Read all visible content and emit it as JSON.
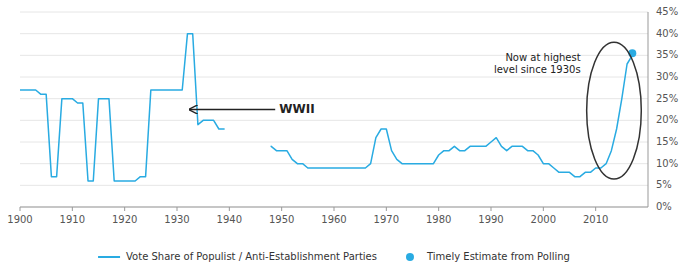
{
  "chart_data": {
    "type": "line",
    "x": [
      1900,
      1901,
      1902,
      1903,
      1904,
      1905,
      1906,
      1907,
      1908,
      1909,
      1910,
      1911,
      1912,
      1913,
      1914,
      1915,
      1916,
      1917,
      1918,
      1919,
      1920,
      1921,
      1922,
      1923,
      1924,
      1925,
      1926,
      1927,
      1928,
      1929,
      1930,
      1931,
      1932,
      1933,
      1934,
      1935,
      1936,
      1937,
      1938,
      1939,
      1940,
      1941,
      1942,
      1943,
      1944,
      1945,
      1946,
      1947,
      1948,
      1949,
      1950,
      1951,
      1952,
      1953,
      1954,
      1955,
      1956,
      1957,
      1958,
      1959,
      1960,
      1961,
      1962,
      1963,
      1964,
      1965,
      1966,
      1967,
      1968,
      1969,
      1970,
      1971,
      1972,
      1973,
      1974,
      1975,
      1976,
      1977,
      1978,
      1979,
      1980,
      1981,
      1982,
      1983,
      1984,
      1985,
      1986,
      1987,
      1988,
      1989,
      1990,
      1991,
      1992,
      1993,
      1994,
      1995,
      1996,
      1997,
      1998,
      1999,
      2000,
      2001,
      2002,
      2003,
      2004,
      2005,
      2006,
      2007,
      2008,
      2009,
      2010,
      2011,
      2012,
      2013,
      2014,
      2015,
      2016,
      2017
    ],
    "series": [
      {
        "name": "Vote Share of Populist / Anti-Establishment Parties",
        "color": "#29ABE2",
        "values": [
          0.27,
          0.27,
          0.27,
          0.27,
          0.26,
          0.26,
          0.07,
          0.07,
          0.25,
          0.25,
          0.25,
          0.24,
          0.24,
          0.06,
          0.06,
          0.25,
          0.25,
          0.25,
          0.06,
          0.06,
          0.06,
          0.06,
          0.06,
          0.07,
          0.07,
          0.27,
          0.27,
          0.27,
          0.27,
          0.27,
          0.27,
          0.27,
          0.4,
          0.4,
          0.19,
          0.2,
          0.2,
          0.2,
          0.18,
          0.18,
          null,
          null,
          null,
          null,
          null,
          null,
          null,
          null,
          0.14,
          0.13,
          0.13,
          0.13,
          0.11,
          0.1,
          0.1,
          0.09,
          0.09,
          0.09,
          0.09,
          0.09,
          0.09,
          0.09,
          0.09,
          0.09,
          0.09,
          0.09,
          0.09,
          0.1,
          0.16,
          0.18,
          0.18,
          0.13,
          0.11,
          0.1,
          0.1,
          0.1,
          0.1,
          0.1,
          0.1,
          0.1,
          0.12,
          0.13,
          0.13,
          0.14,
          0.13,
          0.13,
          0.14,
          0.14,
          0.14,
          0.14,
          0.15,
          0.16,
          0.14,
          0.13,
          0.14,
          0.14,
          0.14,
          0.13,
          0.13,
          0.12,
          0.1,
          0.1,
          0.09,
          0.08,
          0.08,
          0.08,
          0.07,
          0.07,
          0.08,
          0.08,
          0.09,
          0.09,
          0.1,
          0.13,
          0.18,
          0.25,
          0.33,
          0.35
        ]
      },
      {
        "name": "Timely Estimate from Polling",
        "color": "#29ABE2",
        "type": "scatter",
        "x": [
          2017
        ],
        "values": [
          0.355
        ]
      }
    ],
    "xlim": [
      1900,
      2020
    ],
    "xticks": [
      1900,
      1910,
      1920,
      1930,
      1940,
      1950,
      1960,
      1970,
      1980,
      1990,
      2000,
      2010
    ],
    "ylim": [
      0,
      0.45
    ],
    "yticks": [
      {
        "value": 0.0,
        "label": "0%"
      },
      {
        "value": 0.05,
        "label": "5%"
      },
      {
        "value": 0.1,
        "label": "10%"
      },
      {
        "value": 0.15,
        "label": "15%"
      },
      {
        "value": 0.2,
        "label": "20%"
      },
      {
        "value": 0.25,
        "label": "25%"
      },
      {
        "value": 0.3,
        "label": "30%"
      },
      {
        "value": 0.35,
        "label": "35%"
      },
      {
        "value": 0.4,
        "label": "40%"
      },
      {
        "value": 0.45,
        "label": "45%"
      }
    ],
    "grid": true,
    "legend": "bottom",
    "annotations": [
      "WWII",
      "Now at highest\nlevel since 1930s"
    ]
  }
}
